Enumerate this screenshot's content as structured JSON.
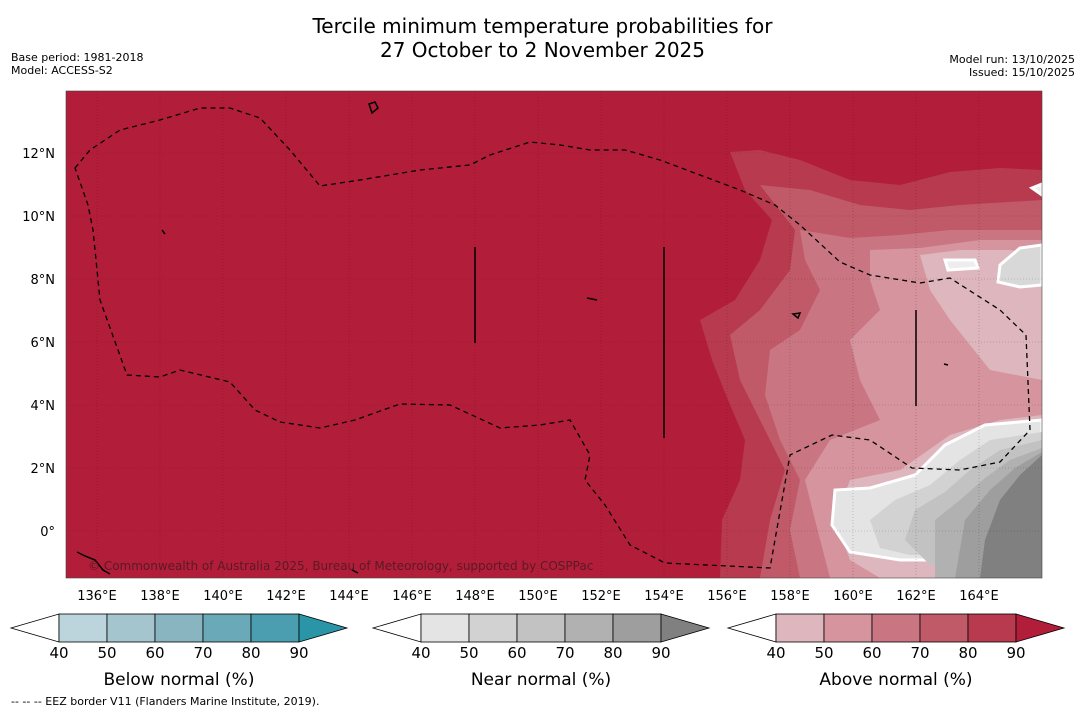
{
  "title": {
    "line1": "Tercile minimum temperature probabilities for",
    "line2": "27 October to 2 November 2025"
  },
  "meta_left": {
    "base_period": "Base period: 1981-2018",
    "model": "Model: ACCESS-S2"
  },
  "meta_right": {
    "model_run": "Model run: 13/10/2025",
    "issued": "Issued: 15/10/2025"
  },
  "map": {
    "lon_labels": [
      "136°E",
      "138°E",
      "140°E",
      "142°E",
      "144°E",
      "146°E",
      "148°E",
      "150°E",
      "152°E",
      "154°E",
      "156°E",
      "158°E",
      "160°E",
      "162°E",
      "164°E"
    ],
    "lat_labels": [
      "12°N",
      "10°N",
      "8°N",
      "6°N",
      "4°N",
      "2°N",
      "0°"
    ],
    "copyright": "© Commonwealth of Australia 2025, Bureau of Meteorology, supported by COSPPac"
  },
  "legend": {
    "below": {
      "title": "Below normal (%)",
      "ticks": [
        "40",
        "50",
        "60",
        "70",
        "80",
        "90"
      ],
      "colors": [
        "#bcd4db",
        "#a4c5cd",
        "#88b5c0",
        "#6aa9b8",
        "#4a9eb0",
        "#2b95a8"
      ]
    },
    "near": {
      "title": "Near normal (%)",
      "ticks": [
        "40",
        "50",
        "60",
        "70",
        "80",
        "90"
      ],
      "colors": [
        "#e4e4e4",
        "#d2d2d2",
        "#c2c2c2",
        "#b1b1b1",
        "#9e9e9e",
        "#808080"
      ]
    },
    "above": {
      "title": "Above normal (%)",
      "ticks": [
        "40",
        "50",
        "60",
        "70",
        "80",
        "90"
      ],
      "colors": [
        "#deb6bd",
        "#d5949e",
        "#c97682",
        "#c05a68",
        "#b83a4e",
        "#b21d3a"
      ]
    }
  },
  "footnote": "--  --  -- EEZ border V11 (Flanders Marine Institute, 2019)."
}
